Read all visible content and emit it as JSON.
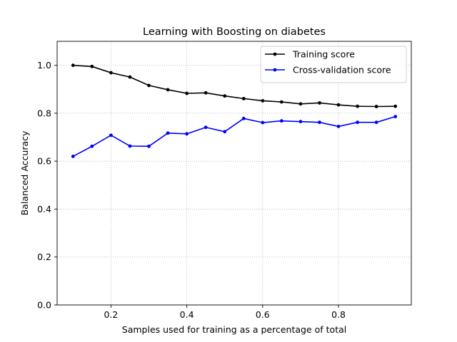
{
  "chart_data": {
    "type": "line",
    "title": "Learning with Boosting on diabetes",
    "xlabel": "Samples used for training as a percentage of total",
    "ylabel": "Balanced Accuracy",
    "xlim": [
      0.058,
      0.992
    ],
    "ylim": [
      0.0,
      1.1
    ],
    "xticks": [
      0.2,
      0.4,
      0.6,
      0.8
    ],
    "xtick_labels": [
      "0.2",
      "0.4",
      "0.6",
      "0.8"
    ],
    "yticks": [
      0.0,
      0.2,
      0.4,
      0.6,
      0.8,
      1.0
    ],
    "ytick_labels": [
      "0.0",
      "0.2",
      "0.4",
      "0.6",
      "0.8",
      "1.0"
    ],
    "grid": true,
    "legend_position": "top-right",
    "x": [
      0.1,
      0.15,
      0.2,
      0.25,
      0.3,
      0.35,
      0.4,
      0.45,
      0.5,
      0.55,
      0.6,
      0.65,
      0.7,
      0.75,
      0.8,
      0.85,
      0.9,
      0.95
    ],
    "series": [
      {
        "name": "Training score",
        "color": "#000000",
        "values": [
          1.0,
          0.995,
          0.969,
          0.951,
          0.916,
          0.898,
          0.883,
          0.885,
          0.872,
          0.861,
          0.852,
          0.847,
          0.839,
          0.843,
          0.835,
          0.829,
          0.828,
          0.829
        ]
      },
      {
        "name": "Cross-validation score",
        "color": "#0000ff",
        "values": [
          0.62,
          0.662,
          0.708,
          0.663,
          0.662,
          0.717,
          0.714,
          0.741,
          0.723,
          0.778,
          0.761,
          0.768,
          0.765,
          0.762,
          0.745,
          0.762,
          0.762,
          0.786
        ]
      }
    ]
  }
}
